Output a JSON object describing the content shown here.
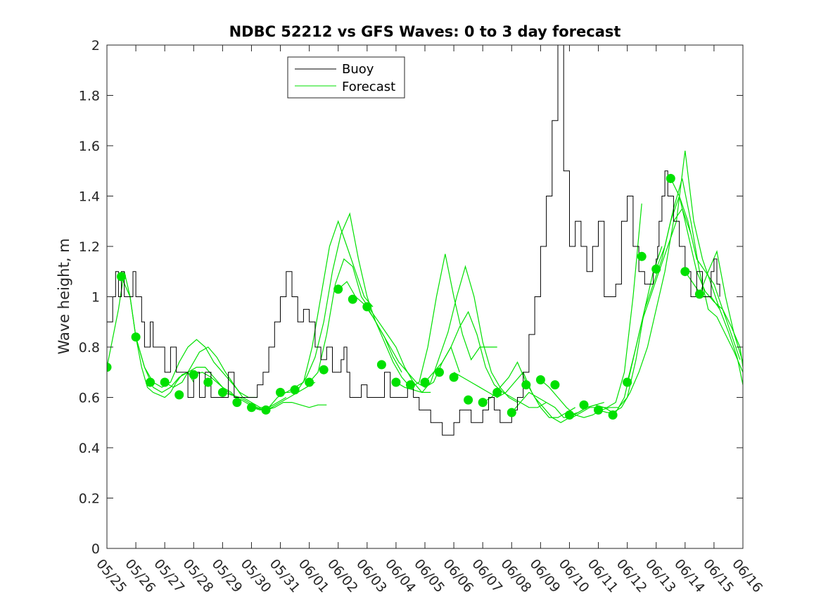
{
  "chart_data": {
    "type": "line",
    "title": "NDBC 52212 vs GFS Waves: 0 to 3 day forecast",
    "xlabel": "",
    "ylabel": "Wave height, m",
    "x_tick_labels": [
      "05/25",
      "05/26",
      "05/27",
      "05/28",
      "05/29",
      "05/30",
      "05/31",
      "06/01",
      "06/02",
      "06/03",
      "06/04",
      "06/05",
      "06/06",
      "06/07",
      "06/08",
      "06/09",
      "06/10",
      "06/11",
      "06/12",
      "06/13",
      "06/14",
      "06/15",
      "06/16"
    ],
    "y_tick_labels": [
      "0",
      "0.2",
      "0.4",
      "0.6",
      "0.8",
      "1",
      "1.2",
      "1.4",
      "1.6",
      "1.8",
      "2"
    ],
    "xlim_days": [
      0,
      22
    ],
    "ylim": [
      0,
      2
    ],
    "grid": false,
    "legend": {
      "placement": "top-left-center",
      "entries": [
        {
          "label": "Buoy",
          "color": "#000000"
        },
        {
          "label": "Forecast",
          "color": "#00e000"
        }
      ]
    },
    "colors": {
      "buoy": "#000000",
      "forecast": "#00e000"
    },
    "buoy": {
      "x": [
        0,
        0.2,
        0.3,
        0.4,
        0.5,
        0.6,
        0.75,
        0.9,
        1.0,
        1.2,
        1.3,
        1.5,
        1.6,
        1.8,
        2.0,
        2.2,
        2.4,
        2.6,
        2.8,
        3.0,
        3.2,
        3.4,
        3.6,
        3.8,
        4.0,
        4.2,
        4.4,
        4.6,
        4.8,
        5.0,
        5.2,
        5.4,
        5.6,
        5.8,
        6.0,
        6.2,
        6.4,
        6.6,
        6.8,
        7.0,
        7.2,
        7.4,
        7.6,
        7.8,
        8.0,
        8.1,
        8.2,
        8.3,
        8.4,
        8.6,
        8.8,
        9.0,
        9.2,
        9.4,
        9.6,
        9.8,
        10.0,
        10.2,
        10.4,
        10.6,
        10.8,
        11.0,
        11.2,
        11.4,
        11.6,
        11.8,
        12.0,
        12.2,
        12.4,
        12.6,
        12.8,
        13.0,
        13.2,
        13.4,
        13.6,
        13.8,
        14.0,
        14.2,
        14.4,
        14.6,
        14.8,
        15.0,
        15.2,
        15.4,
        15.6,
        15.8,
        16.0,
        16.2,
        16.4,
        16.6,
        16.8,
        17.0,
        17.2,
        17.4,
        17.6,
        17.8,
        18.0,
        18.2,
        18.4,
        18.6,
        18.8,
        18.9,
        19.0,
        19.05,
        19.1,
        19.2,
        19.3,
        19.4,
        19.6,
        19.8,
        20.0,
        20.2,
        20.4,
        20.6,
        20.8,
        20.9,
        21.0,
        21.1,
        21.2
      ],
      "y": [
        0.9,
        1.0,
        1.1,
        1.0,
        1.1,
        1.0,
        1.0,
        1.1,
        1.0,
        0.9,
        0.8,
        0.9,
        0.8,
        0.8,
        0.7,
        0.8,
        0.7,
        0.7,
        0.6,
        0.7,
        0.6,
        0.7,
        0.6,
        0.6,
        0.6,
        0.7,
        0.6,
        0.6,
        0.6,
        0.6,
        0.65,
        0.7,
        0.8,
        0.9,
        1.0,
        1.1,
        1.0,
        0.9,
        0.95,
        0.9,
        0.8,
        0.75,
        0.8,
        0.7,
        0.7,
        0.75,
        0.8,
        0.7,
        0.6,
        0.6,
        0.65,
        0.6,
        0.6,
        0.6,
        0.7,
        0.6,
        0.6,
        0.6,
        0.65,
        0.6,
        0.55,
        0.55,
        0.5,
        0.5,
        0.45,
        0.45,
        0.5,
        0.55,
        0.55,
        0.5,
        0.5,
        0.55,
        0.6,
        0.55,
        0.5,
        0.5,
        0.55,
        0.6,
        0.7,
        0.85,
        1.0,
        1.2,
        1.4,
        1.7,
        2.0,
        1.5,
        1.2,
        1.3,
        1.2,
        1.1,
        1.2,
        1.3,
        1.0,
        1.0,
        1.05,
        1.3,
        1.4,
        1.2,
        1.1,
        1.05,
        1.05,
        1.1,
        1.15,
        1.2,
        1.3,
        1.4,
        1.5,
        1.4,
        1.3,
        1.2,
        1.1,
        1.0,
        1.1,
        1.0,
        1.0,
        1.1,
        1.15,
        1.05,
        1.0
      ]
    },
    "forecast_markers": {
      "x": [
        0,
        0.5,
        1,
        1.5,
        2,
        2.5,
        3,
        3.5,
        4,
        4.5,
        5,
        5.5,
        6,
        6.5,
        7,
        7.5,
        8,
        8.5,
        9,
        9.5,
        10,
        10.5,
        11,
        11.5,
        12,
        12.5,
        13,
        13.5,
        14,
        14.5,
        15,
        15.5,
        16,
        16.5,
        17,
        17.5,
        18,
        18.5,
        19,
        19.5,
        20,
        20.5,
        21
      ],
      "y": [
        0.72,
        1.08,
        0.84,
        0.66,
        0.66,
        0.61,
        0.69,
        0.66,
        0.62,
        0.58,
        0.56,
        0.55,
        0.62,
        0.63,
        0.66,
        0.71,
        1.03,
        0.99,
        0.96,
        0.73,
        0.66,
        0.65,
        0.66,
        0.7,
        0.68,
        0.59,
        0.58,
        0.62,
        0.54,
        0.65,
        0.67,
        0.65,
        0.53,
        0.57,
        0.55,
        0.53,
        0.66,
        1.16,
        1.11,
        1.47,
        1.1,
        1.01,
        null
      ]
    },
    "forecast_runs": [
      {
        "x": [
          0,
          0.4,
          0.6,
          0.8,
          1,
          1.2,
          1.4,
          1.6,
          1.8,
          2,
          2.2,
          2.4,
          2.6,
          2.8,
          3
        ],
        "y": [
          0.72,
          0.95,
          1.1,
          1.0,
          0.84,
          0.72,
          0.64,
          0.62,
          0.61,
          0.6,
          0.62,
          0.66,
          0.69,
          0.7,
          0.66
        ]
      },
      {
        "x": [
          0.5,
          0.8,
          1,
          1.3,
          1.6,
          1.9,
          2.2,
          2.5,
          2.8,
          3.1,
          3.4,
          3.7,
          4,
          4.3,
          4.6
        ],
        "y": [
          1.08,
          1.0,
          0.84,
          0.72,
          0.64,
          0.62,
          0.64,
          0.68,
          0.7,
          0.72,
          0.72,
          0.68,
          0.64,
          0.62,
          0.58
        ]
      },
      {
        "x": [
          1,
          1.3,
          1.6,
          1.9,
          2.2,
          2.5,
          2.8,
          3.1,
          3.4,
          3.7,
          4,
          4.3,
          4.6,
          4.9,
          5.2
        ],
        "y": [
          0.84,
          0.72,
          0.66,
          0.64,
          0.66,
          0.74,
          0.8,
          0.83,
          0.8,
          0.74,
          0.7,
          0.66,
          0.62,
          0.6,
          0.6
        ]
      },
      {
        "x": [
          2,
          2.3,
          2.6,
          2.9,
          3.2,
          3.5,
          3.8,
          4.1,
          4.4,
          4.7,
          5,
          5.3,
          5.6,
          5.9,
          6.2
        ],
        "y": [
          0.66,
          0.64,
          0.66,
          0.72,
          0.78,
          0.8,
          0.76,
          0.7,
          0.65,
          0.6,
          0.58,
          0.56,
          0.56,
          0.58,
          0.6
        ]
      },
      {
        "x": [
          3,
          3.3,
          3.6,
          3.9,
          4.2,
          4.5,
          4.8,
          5.1,
          5.4,
          5.7,
          6,
          6.3,
          6.6,
          6.9,
          7.2
        ],
        "y": [
          0.69,
          0.7,
          0.68,
          0.65,
          0.62,
          0.6,
          0.58,
          0.56,
          0.55,
          0.56,
          0.58,
          0.6,
          0.62,
          0.64,
          0.66
        ]
      },
      {
        "x": [
          4,
          4.3,
          4.6,
          4.9,
          5.2,
          5.5,
          5.8,
          6.1,
          6.4,
          6.7,
          7,
          7.3,
          7.6
        ],
        "y": [
          0.62,
          0.61,
          0.6,
          0.58,
          0.56,
          0.55,
          0.56,
          0.58,
          0.58,
          0.57,
          0.56,
          0.57,
          0.57
        ]
      },
      {
        "x": [
          5,
          5.3,
          5.6,
          5.9,
          6.2,
          6.5,
          6.8,
          7.1,
          7.4,
          7.7,
          8,
          8.3,
          8.6,
          8.9,
          9.2
        ],
        "y": [
          0.56,
          0.55,
          0.56,
          0.6,
          0.62,
          0.64,
          0.66,
          0.8,
          1.0,
          1.2,
          1.3,
          1.2,
          1.1,
          1.0,
          0.96
        ]
      },
      {
        "x": [
          6,
          6.3,
          6.6,
          6.9,
          7.2,
          7.5,
          7.8,
          8.1,
          8.4,
          8.7,
          9,
          9.3,
          9.6,
          9.9,
          10.2
        ],
        "y": [
          0.62,
          0.62,
          0.63,
          0.68,
          0.76,
          0.9,
          1.1,
          1.25,
          1.33,
          1.15,
          1.0,
          0.9,
          0.84,
          0.76,
          0.7
        ]
      },
      {
        "x": [
          7,
          7.3,
          7.6,
          7.9,
          8.2,
          8.5,
          8.8,
          9.1,
          9.4,
          9.7,
          10,
          10.3,
          10.6,
          10.9,
          11.2
        ],
        "y": [
          0.66,
          0.7,
          0.85,
          1.05,
          1.15,
          1.12,
          1.0,
          0.95,
          0.9,
          0.85,
          0.8,
          0.72,
          0.66,
          0.62,
          0.62
        ]
      },
      {
        "x": [
          8,
          8.3,
          8.6,
          8.9,
          9.2,
          9.5,
          9.8,
          10.1,
          10.4,
          10.7,
          11,
          11.3,
          11.6,
          11.9,
          12.2
        ],
        "y": [
          1.03,
          1.06,
          1.0,
          0.97,
          0.92,
          0.86,
          0.8,
          0.74,
          0.7,
          0.66,
          0.64,
          0.66,
          0.74,
          0.8,
          0.7
        ]
      },
      {
        "x": [
          9,
          9.3,
          9.6,
          9.9,
          10.2,
          10.5,
          10.8,
          11.1,
          11.4,
          11.7,
          12,
          12.3,
          12.6,
          12.9,
          13.2,
          13.5
        ],
        "y": [
          0.96,
          0.9,
          0.82,
          0.74,
          0.68,
          0.64,
          0.66,
          0.8,
          1.0,
          1.17,
          1.0,
          0.85,
          0.75,
          0.8,
          0.8,
          0.8
        ]
      },
      {
        "x": [
          10,
          10.3,
          10.6,
          10.9,
          11.2,
          11.5,
          11.8,
          12.1,
          12.4,
          12.7,
          13,
          13.3,
          13.6,
          13.9,
          14.2
        ],
        "y": [
          0.66,
          0.64,
          0.63,
          0.62,
          0.66,
          0.76,
          0.86,
          1.0,
          1.12,
          1.0,
          0.82,
          0.7,
          0.64,
          0.6,
          0.58
        ]
      },
      {
        "x": [
          11,
          11.3,
          11.6,
          11.9,
          12.2,
          12.5,
          12.8,
          13.1,
          13.4,
          13.7,
          14,
          14.3,
          14.6,
          14.9,
          15.2
        ],
        "y": [
          0.66,
          0.7,
          0.74,
          0.8,
          0.88,
          0.94,
          0.85,
          0.72,
          0.65,
          0.62,
          0.6,
          0.58,
          0.56,
          0.56,
          0.58
        ]
      },
      {
        "x": [
          12,
          12.3,
          12.6,
          12.9,
          13.2,
          13.5,
          13.8,
          14.1,
          14.4,
          14.7,
          15,
          15.3,
          15.6,
          15.9,
          16.2
        ],
        "y": [
          0.7,
          0.68,
          0.66,
          0.64,
          0.62,
          0.6,
          0.62,
          0.66,
          0.7,
          0.62,
          0.56,
          0.52,
          0.52,
          0.54,
          0.56
        ]
      },
      {
        "x": [
          13,
          13.3,
          13.6,
          13.9,
          14.2,
          14.5,
          14.8,
          15.1,
          15.4,
          15.7,
          16,
          16.3,
          16.6,
          16.9,
          17.2
        ],
        "y": [
          0.58,
          0.6,
          0.64,
          0.68,
          0.74,
          0.66,
          0.6,
          0.56,
          0.52,
          0.5,
          0.52,
          0.54,
          0.56,
          0.57,
          0.58
        ]
      },
      {
        "x": [
          14,
          14.3,
          14.6,
          14.9,
          15.2,
          15.5,
          15.8,
          16.1,
          16.4,
          16.7,
          17,
          17.3,
          17.6,
          17.9,
          18.2,
          18.5
        ],
        "y": [
          0.54,
          0.58,
          0.62,
          0.6,
          0.58,
          0.56,
          0.52,
          0.52,
          0.54,
          0.56,
          0.56,
          0.56,
          0.58,
          0.7,
          1.0,
          1.37
        ]
      },
      {
        "x": [
          15,
          15.3,
          15.6,
          15.9,
          16.2,
          16.5,
          16.8,
          17.1,
          17.4,
          17.7,
          18,
          18.3,
          18.6,
          18.9,
          19.2
        ],
        "y": [
          0.67,
          0.64,
          0.6,
          0.56,
          0.53,
          0.52,
          0.53,
          0.55,
          0.56,
          0.56,
          0.6,
          0.75,
          0.95,
          1.1,
          1.2
        ]
      },
      {
        "x": [
          16,
          16.3,
          16.6,
          16.9,
          17.2,
          17.5,
          17.8,
          18.1,
          18.4,
          18.7,
          19,
          19.3,
          19.6,
          19.9,
          20.2
        ],
        "y": [
          0.53,
          0.54,
          0.56,
          0.57,
          0.56,
          0.54,
          0.56,
          0.62,
          0.7,
          0.8,
          0.95,
          1.1,
          1.3,
          1.35,
          1.25
        ]
      },
      {
        "x": [
          17,
          17.3,
          17.6,
          17.9,
          18.2,
          18.5,
          18.8,
          19.1,
          19.4,
          19.7,
          20,
          20.3,
          20.6,
          20.9,
          21.2
        ],
        "y": [
          0.55,
          0.54,
          0.54,
          0.6,
          0.75,
          0.9,
          1.0,
          1.1,
          1.2,
          1.3,
          1.58,
          1.3,
          1.15,
          1.05,
          0.95
        ]
      },
      {
        "x": [
          18,
          18.3,
          18.6,
          18.9,
          19.2,
          19.5,
          19.8,
          20.1,
          20.4,
          20.7,
          21,
          21.3,
          21.6,
          21.9
        ],
        "y": [
          0.66,
          0.8,
          0.95,
          1.05,
          1.15,
          1.3,
          1.4,
          1.3,
          1.15,
          1.1,
          1.05,
          0.95,
          0.85,
          0.75
        ]
      },
      {
        "x": [
          19,
          19.3,
          19.6,
          19.9,
          20.2,
          20.5,
          20.8,
          21.1,
          21.4,
          21.7,
          22
        ],
        "y": [
          1.11,
          1.2,
          1.35,
          1.47,
          1.3,
          1.1,
          0.95,
          0.92,
          0.85,
          0.78,
          0.7
        ]
      },
      {
        "x": [
          19.5,
          19.8,
          20.1,
          20.4,
          20.7,
          21,
          21.3,
          21.6,
          21.9,
          22
        ],
        "y": [
          1.47,
          1.4,
          1.25,
          1.1,
          1.02,
          0.98,
          0.95,
          0.88,
          0.8,
          0.72
        ]
      },
      {
        "x": [
          20,
          20.3,
          20.6,
          20.9,
          21.2,
          21.5,
          21.8,
          22
        ],
        "y": [
          1.1,
          1.05,
          1.0,
          1.0,
          0.95,
          0.86,
          0.76,
          0.65
        ]
      },
      {
        "x": [
          20.5,
          20.8,
          21.1,
          21.4,
          21.7,
          22
        ],
        "y": [
          1.01,
          1.1,
          1.18,
          1.0,
          0.85,
          0.74
        ]
      }
    ]
  }
}
